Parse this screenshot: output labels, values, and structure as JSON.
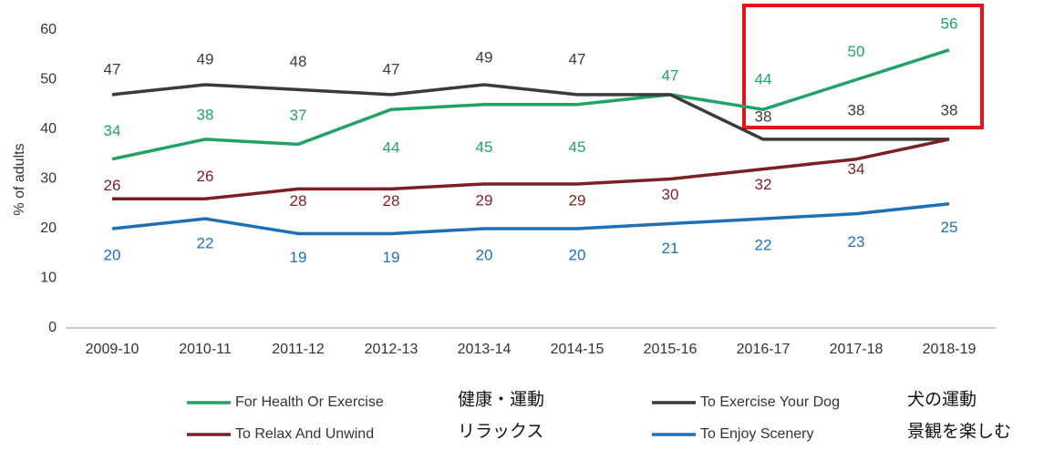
{
  "chart_data": {
    "type": "line",
    "y_label": "% of adults",
    "categories": [
      "2009-10",
      "2010-11",
      "2011-12",
      "2012-13",
      "2013-14",
      "2014-15",
      "2015-16",
      "2016-17",
      "2017-18",
      "2018-19"
    ],
    "series": [
      {
        "name": "For Health Or Exercise",
        "color": "#21a366",
        "values": [
          34,
          38,
          37,
          44,
          45,
          45,
          47,
          44,
          50,
          56
        ]
      },
      {
        "name": "To Exercise Your Dog",
        "color": "#3b3b3b",
        "values": [
          47,
          49,
          48,
          47,
          49,
          47,
          47,
          38,
          38,
          38
        ],
        "value_labels": [
          "47",
          "49",
          "48",
          "47",
          "49",
          "47",
          null,
          "38",
          "38",
          "38"
        ]
      },
      {
        "name": "To Relax And Unwind",
        "color": "#7b1f24",
        "values": [
          26,
          26,
          28,
          28,
          29,
          29,
          30,
          32,
          34,
          38
        ],
        "value_labels": [
          "26",
          "26",
          "28",
          "28",
          "29",
          "29",
          "30",
          "32",
          "34",
          null
        ]
      },
      {
        "name": "To Enjoy Scenery",
        "color": "#1f6fb5",
        "values": [
          20,
          22,
          19,
          19,
          20,
          20,
          21,
          22,
          23,
          25
        ]
      }
    ],
    "annotations": [
      "健康・運動",
      "犬の運動",
      "リラックス",
      "景観を楽しむ"
    ],
    "ylim": [
      0,
      60
    ],
    "yticks": [
      0,
      10,
      20,
      30,
      40,
      50,
      60
    ],
    "grid": false
  }
}
